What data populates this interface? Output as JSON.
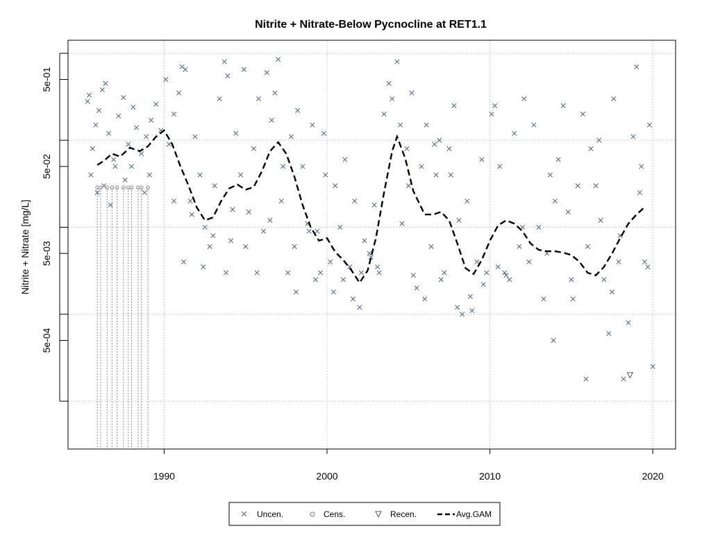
{
  "chart_data": {
    "type": "scatter",
    "title": "Nitrite + Nitrate-Below Pycnocline at RET1.1",
    "xlabel": "",
    "ylabel": "Nitrite + Nitrate [mg/L]",
    "x_ticks": [
      "1990",
      "2000",
      "2010",
      "2020"
    ],
    "y_ticks": [
      "5e-04",
      "5e-03",
      "5e-02",
      "5e-01"
    ],
    "xlim": [
      1984.1,
      2021.4
    ],
    "ylim_log10": [
      -4.55,
      0.15
    ],
    "y_scale": "log",
    "grid": true,
    "legend_position": "bottom",
    "legend": {
      "items": [
        {
          "key": "uncen",
          "label": "Uncen."
        },
        {
          "key": "cens",
          "label": "Cens."
        },
        {
          "key": "recen",
          "label": "Recen."
        },
        {
          "key": "gam",
          "label": "Avg.GAM"
        }
      ]
    },
    "colors": {
      "points": "#5a6e87",
      "censored": "#888888",
      "gam": "#000000",
      "grid": "#c8c8c8"
    },
    "series": [
      {
        "name": "Uncen.",
        "marker": "x",
        "points": [
          [
            1985.3,
            0.28
          ],
          [
            1985.4,
            0.33
          ],
          [
            1985.6,
            0.08
          ],
          [
            1985.8,
            0.15
          ],
          [
            1986.0,
            0.22
          ],
          [
            1986.2,
            0.38
          ],
          [
            1986.4,
            0.45
          ],
          [
            1986.6,
            0.12
          ],
          [
            1986.9,
            0.06
          ],
          [
            1987.2,
            0.19
          ],
          [
            1987.5,
            0.31
          ],
          [
            1987.8,
            0.09
          ],
          [
            1988.1,
            0.24
          ],
          [
            1988.3,
            0.14
          ],
          [
            1988.6,
            0.07
          ],
          [
            1988.9,
            0.11
          ],
          [
            1989.2,
            0.17
          ],
          [
            1989.5,
            0.26
          ],
          [
            1989.8,
            0.13
          ],
          [
            1985.5,
            0.04
          ],
          [
            1985.9,
            0.025
          ],
          [
            1986.3,
            0.03
          ],
          [
            1986.7,
            0.018
          ],
          [
            1987.0,
            0.05
          ],
          [
            1987.6,
            0.035
          ],
          [
            1988.0,
            0.05
          ],
          [
            1988.8,
            0.025
          ],
          [
            1989.1,
            0.04
          ],
          [
            1990.1,
            0.5
          ],
          [
            1990.3,
            0.09
          ],
          [
            1990.6,
            0.2
          ],
          [
            1990.9,
            0.35
          ],
          [
            1991.1,
            0.7
          ],
          [
            1991.3,
            0.65
          ],
          [
            1991.6,
            0.02
          ],
          [
            1991.9,
            0.11
          ],
          [
            1992.2,
            0.04
          ],
          [
            1992.5,
            0.01
          ],
          [
            1992.8,
            0.006
          ],
          [
            1993.1,
            0.03
          ],
          [
            1993.4,
            0.3
          ],
          [
            1993.7,
            0.8
          ],
          [
            1993.9,
            0.55
          ],
          [
            1994.1,
            0.007
          ],
          [
            1994.4,
            0.12
          ],
          [
            1994.7,
            0.04
          ],
          [
            1994.9,
            0.65
          ],
          [
            1995.2,
            0.015
          ],
          [
            1995.5,
            0.08
          ],
          [
            1995.8,
            0.3
          ],
          [
            1996.1,
            0.009
          ],
          [
            1996.3,
            0.6
          ],
          [
            1996.6,
            0.17
          ],
          [
            1996.8,
            0.35
          ],
          [
            1997.0,
            0.85
          ],
          [
            1997.3,
            0.05
          ],
          [
            1997.6,
            0.003
          ],
          [
            1997.8,
            0.11
          ],
          [
            1998.0,
            0.006
          ],
          [
            1998.2,
            0.22
          ],
          [
            1998.5,
            0.05
          ],
          [
            1998.8,
            0.011
          ],
          [
            1999.1,
            0.15
          ],
          [
            1999.4,
            0.009
          ],
          [
            1999.6,
            0.003
          ],
          [
            1999.9,
            0.04
          ],
          [
            1990.6,
            0.02
          ],
          [
            1991.2,
            0.004
          ],
          [
            1991.7,
            0.014
          ],
          [
            1992.4,
            0.0035
          ],
          [
            1993.0,
            0.008
          ],
          [
            1993.8,
            0.003
          ],
          [
            1994.2,
            0.016
          ],
          [
            1995.0,
            0.006
          ],
          [
            1995.7,
            0.003
          ],
          [
            1996.5,
            0.012
          ],
          [
            1997.2,
            0.02
          ],
          [
            1998.1,
            0.0018
          ],
          [
            1998.9,
            0.009
          ],
          [
            1999.3,
            0.0025
          ],
          [
            1999.8,
            0.12
          ],
          [
            2000.2,
            0.004
          ],
          [
            2000.5,
            0.03
          ],
          [
            2000.8,
            0.01
          ],
          [
            2001.1,
            0.06
          ],
          [
            2001.4,
            0.0035
          ],
          [
            2001.7,
            0.02
          ],
          [
            2002.0,
            0.0012
          ],
          [
            2002.3,
            0.007
          ],
          [
            2002.6,
            0.005
          ],
          [
            2002.9,
            0.018
          ],
          [
            2003.2,
            0.003
          ],
          [
            2003.5,
            0.2
          ],
          [
            2003.8,
            0.45
          ],
          [
            2004.0,
            0.3
          ],
          [
            2004.3,
            0.8
          ],
          [
            2004.6,
            0.011
          ],
          [
            2004.9,
            0.08
          ],
          [
            2005.2,
            0.35
          ],
          [
            2005.5,
            0.002
          ],
          [
            2005.8,
            0.05
          ],
          [
            2006.1,
            0.15
          ],
          [
            2006.4,
            0.006
          ],
          [
            2006.7,
            0.04
          ],
          [
            2006.9,
            0.1
          ],
          [
            2007.2,
            0.003
          ],
          [
            2007.5,
            0.08
          ],
          [
            2007.8,
            0.25
          ],
          [
            2008.1,
            0.012
          ],
          [
            2008.3,
            0.001
          ],
          [
            2008.6,
            0.02
          ],
          [
            2008.9,
            0.0011
          ],
          [
            2009.2,
            0.004
          ],
          [
            2009.5,
            0.06
          ],
          [
            2009.8,
            0.003
          ],
          [
            2000.4,
            0.0018
          ],
          [
            2001.0,
            0.0025
          ],
          [
            2001.6,
            0.0015
          ],
          [
            2002.1,
            0.003
          ],
          [
            2002.7,
            0.0045
          ],
          [
            2003.1,
            0.0035
          ],
          [
            2005.3,
            0.0028
          ],
          [
            2006.0,
            0.0015
          ],
          [
            2007.0,
            0.0025
          ],
          [
            2008.0,
            0.0012
          ],
          [
            2008.8,
            0.0016
          ],
          [
            2009.6,
            0.0022
          ],
          [
            2004.5,
            0.15
          ],
          [
            2005.0,
            0.03
          ],
          [
            2006.6,
            0.09
          ],
          [
            2007.6,
            0.04
          ],
          [
            2010.1,
            0.2
          ],
          [
            2010.3,
            0.25
          ],
          [
            2010.6,
            0.05
          ],
          [
            2010.9,
            0.003
          ],
          [
            2011.2,
            0.0025
          ],
          [
            2011.5,
            0.12
          ],
          [
            2011.8,
            0.006
          ],
          [
            2012.1,
            0.3
          ],
          [
            2012.4,
            0.004
          ],
          [
            2012.7,
            0.15
          ],
          [
            2013.0,
            0.01
          ],
          [
            2013.3,
            0.0015
          ],
          [
            2013.7,
            0.04
          ],
          [
            2013.9,
            0.0005
          ],
          [
            2014.2,
            0.06
          ],
          [
            2014.5,
            0.25
          ],
          [
            2014.8,
            0.015
          ],
          [
            2015.1,
            0.0015
          ],
          [
            2015.4,
            0.03
          ],
          [
            2015.7,
            0.2
          ],
          [
            2015.9,
            0.00018
          ],
          [
            2016.2,
            0.08
          ],
          [
            2016.5,
            0.03
          ],
          [
            2016.8,
            0.012
          ],
          [
            2017.0,
            0.0025
          ],
          [
            2017.3,
            0.0006
          ],
          [
            2017.6,
            0.3
          ],
          [
            2017.9,
            0.004
          ],
          [
            2018.2,
            0.00018
          ],
          [
            2018.5,
            0.0008
          ],
          [
            2018.8,
            0.11
          ],
          [
            2019.0,
            0.7
          ],
          [
            2019.3,
            0.05
          ],
          [
            2019.5,
            0.004
          ],
          [
            2019.8,
            0.15
          ],
          [
            2020.0,
            0.00025
          ],
          [
            2010.5,
            0.0035
          ],
          [
            2011.0,
            0.0028
          ],
          [
            2012.0,
            0.01
          ],
          [
            2013.5,
            0.005
          ],
          [
            2014.0,
            0.02
          ],
          [
            2015.0,
            0.0025
          ],
          [
            2016.0,
            0.006
          ],
          [
            2017.5,
            0.0018
          ],
          [
            2018.0,
            0.008
          ],
          [
            2019.2,
            0.025
          ],
          [
            2019.7,
            0.0035
          ],
          [
            2016.7,
            0.1
          ]
        ]
      },
      {
        "name": "Cens.",
        "marker": "circle",
        "points": [
          [
            1985.9,
            0.0286
          ],
          [
            1986.1,
            0.0286
          ],
          [
            1986.5,
            0.0286
          ],
          [
            1986.8,
            0.0286
          ],
          [
            1987.1,
            0.0286
          ],
          [
            1987.5,
            0.0286
          ],
          [
            1987.8,
            0.0286
          ],
          [
            1988.0,
            0.0286
          ],
          [
            1988.4,
            0.0286
          ],
          [
            1988.6,
            0.0286
          ],
          [
            1989.0,
            0.0286
          ]
        ]
      },
      {
        "name": "Recen.",
        "marker": "triangle-down",
        "points": [
          [
            2018.6,
            0.0002
          ]
        ]
      },
      {
        "name": "Avg.GAM",
        "line": "dashed",
        "points": [
          [
            1985.9,
            0.052
          ],
          [
            1986.3,
            0.058
          ],
          [
            1986.8,
            0.07
          ],
          [
            1987.3,
            0.065
          ],
          [
            1987.9,
            0.082
          ],
          [
            1988.5,
            0.075
          ],
          [
            1989.0,
            0.085
          ],
          [
            1989.5,
            0.11
          ],
          [
            1990.0,
            0.13
          ],
          [
            1990.5,
            0.09
          ],
          [
            1991.0,
            0.05
          ],
          [
            1991.5,
            0.03
          ],
          [
            1992.0,
            0.017
          ],
          [
            1992.5,
            0.012
          ],
          [
            1993.0,
            0.013
          ],
          [
            1993.5,
            0.02
          ],
          [
            1994.0,
            0.028
          ],
          [
            1994.5,
            0.031
          ],
          [
            1995.0,
            0.027
          ],
          [
            1995.5,
            0.029
          ],
          [
            1996.0,
            0.044
          ],
          [
            1996.5,
            0.075
          ],
          [
            1997.0,
            0.095
          ],
          [
            1997.5,
            0.07
          ],
          [
            1998.0,
            0.038
          ],
          [
            1998.5,
            0.018
          ],
          [
            1999.0,
            0.01
          ],
          [
            1999.5,
            0.007
          ],
          [
            2000.0,
            0.0075
          ],
          [
            2000.5,
            0.0052
          ],
          [
            2001.0,
            0.0042
          ],
          [
            2001.5,
            0.0032
          ],
          [
            2002.0,
            0.0023
          ],
          [
            2002.5,
            0.0032
          ],
          [
            2003.0,
            0.0075
          ],
          [
            2003.5,
            0.025
          ],
          [
            2004.0,
            0.075
          ],
          [
            2004.3,
            0.11
          ],
          [
            2004.8,
            0.062
          ],
          [
            2005.3,
            0.026
          ],
          [
            2006.0,
            0.014
          ],
          [
            2006.5,
            0.014
          ],
          [
            2007.0,
            0.015
          ],
          [
            2007.5,
            0.012
          ],
          [
            2008.0,
            0.0065
          ],
          [
            2008.5,
            0.0034
          ],
          [
            2009.0,
            0.0029
          ],
          [
            2009.5,
            0.0042
          ],
          [
            2010.0,
            0.007
          ],
          [
            2010.5,
            0.0105
          ],
          [
            2011.0,
            0.012
          ],
          [
            2011.5,
            0.011
          ],
          [
            2012.0,
            0.009
          ],
          [
            2012.5,
            0.0065
          ],
          [
            2013.0,
            0.0055
          ],
          [
            2013.5,
            0.0053
          ],
          [
            2014.0,
            0.0053
          ],
          [
            2014.5,
            0.0051
          ],
          [
            2015.0,
            0.0048
          ],
          [
            2015.5,
            0.004
          ],
          [
            2016.0,
            0.003
          ],
          [
            2016.5,
            0.0028
          ],
          [
            2017.0,
            0.0035
          ],
          [
            2017.5,
            0.005
          ],
          [
            2018.0,
            0.0075
          ],
          [
            2018.5,
            0.011
          ],
          [
            2019.0,
            0.014
          ],
          [
            2019.5,
            0.017
          ]
        ]
      }
    ]
  }
}
